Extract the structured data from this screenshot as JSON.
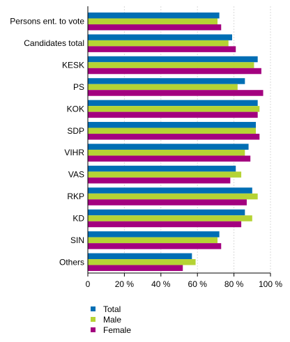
{
  "chart_data": {
    "type": "bar",
    "orientation": "horizontal",
    "categories": [
      "Persons ent. to vote",
      "Candidates total",
      "KESK",
      "PS",
      "KOK",
      "SDP",
      "VIHR",
      "VAS",
      "RKP",
      "KD",
      "SIN",
      "Others"
    ],
    "series": [
      {
        "name": "Total",
        "color": "#006eb4",
        "values": [
          72,
          79,
          93,
          86,
          93,
          92,
          88,
          81,
          90,
          86,
          72,
          57
        ]
      },
      {
        "name": "Male",
        "color": "#b5d334",
        "values": [
          71,
          77,
          91,
          82,
          94,
          92,
          86,
          84,
          93,
          90,
          71,
          59
        ]
      },
      {
        "name": "Female",
        "color": "#a3007f",
        "values": [
          73,
          81,
          95,
          96,
          93,
          94,
          89,
          78,
          87,
          84,
          73,
          52
        ]
      }
    ],
    "xlim": [
      0,
      100
    ],
    "xticks": [
      0,
      20,
      40,
      60,
      80,
      100
    ],
    "xtick_labels": [
      "0",
      "20 %",
      "40 %",
      "60 %",
      "80 %",
      "100 %"
    ],
    "grid": true,
    "legend_position": "bottom-left"
  }
}
